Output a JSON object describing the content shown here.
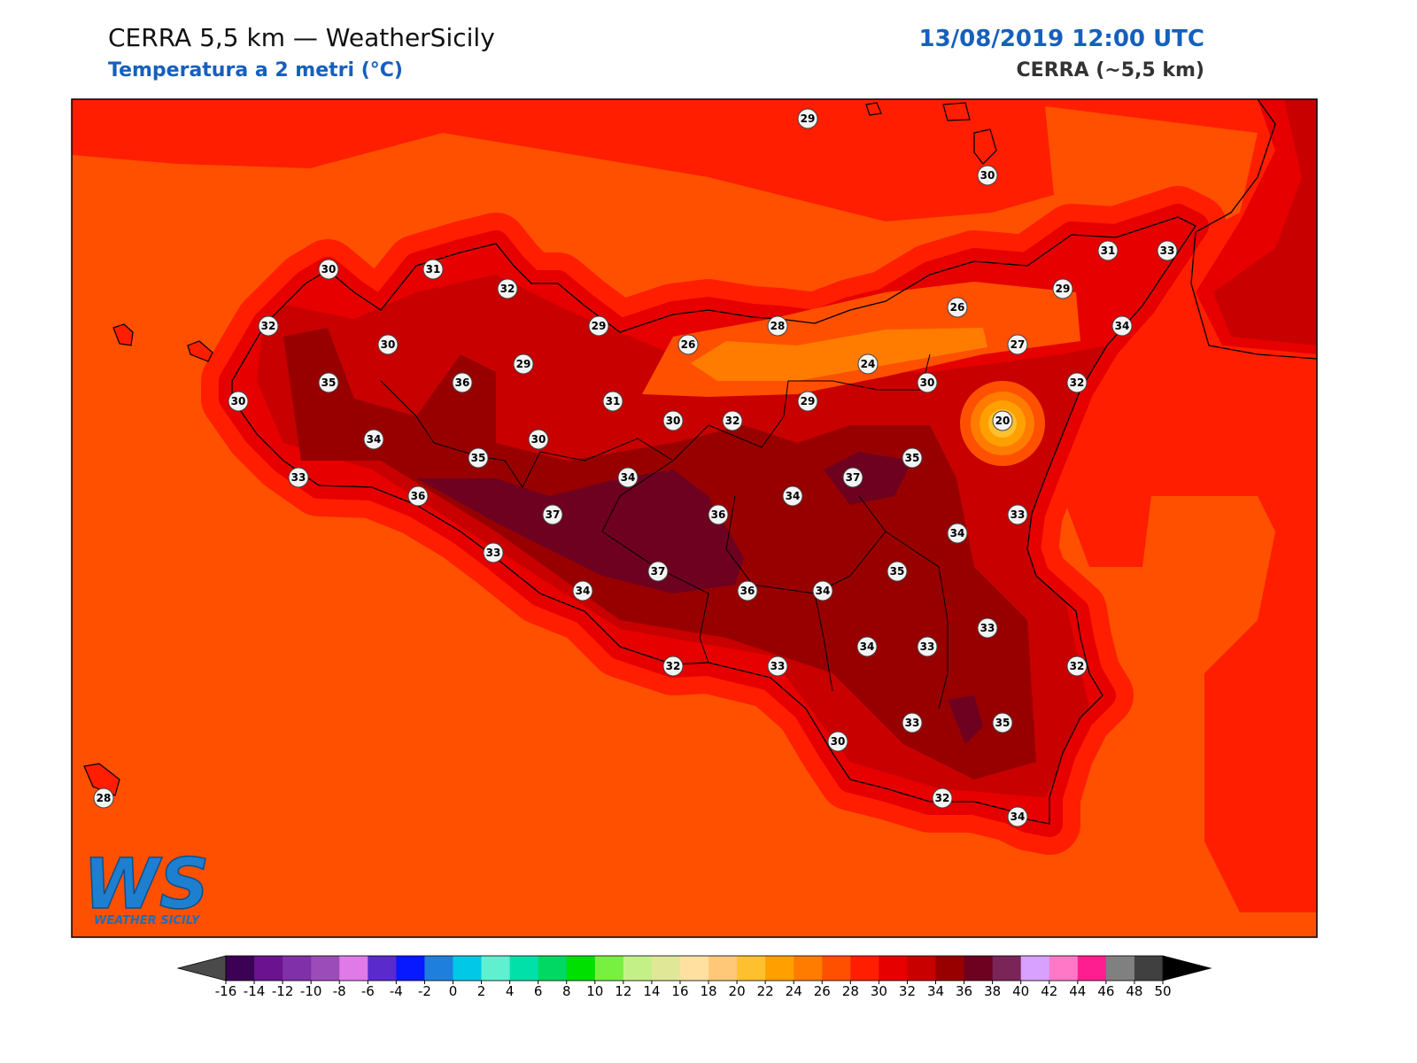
{
  "header": {
    "title": "CERRA 5,5 km — WeatherSicily",
    "subtitle": "Temperatura a 2 metri (°C)",
    "datetime": "13/08/2019 12:00 UTC",
    "source": "CERRA (~5,5 km)"
  },
  "logo": {
    "mark": "WS",
    "text": "Weather Sicily"
  },
  "stations": [
    29,
    30,
    30,
    31,
    32,
    32,
    30,
    29,
    26,
    28,
    26,
    29,
    31,
    33,
    34,
    27,
    24,
    30,
    32,
    35,
    36,
    29,
    30,
    31,
    30,
    32,
    29,
    20,
    34,
    30,
    35,
    35,
    33,
    34,
    37,
    36,
    34,
    37,
    36,
    33,
    34,
    33,
    37,
    35,
    34,
    36,
    34,
    33,
    34,
    33,
    32,
    33,
    32,
    33,
    35,
    30,
    32,
    28,
    34
  ],
  "colorbar": {
    "ticks": [
      -16,
      -14,
      -12,
      -10,
      -8,
      -6,
      -4,
      -2,
      0,
      2,
      4,
      6,
      8,
      10,
      12,
      14,
      16,
      18,
      20,
      22,
      24,
      26,
      28,
      30,
      32,
      34,
      36,
      38,
      40,
      42,
      44,
      46,
      48,
      50
    ],
    "colors": [
      "#3c0055",
      "#6a128f",
      "#8030a8",
      "#9c4cb8",
      "#e07ae8",
      "#5a2acc",
      "#0818ff",
      "#1e80dc",
      "#00c8e6",
      "#60f0d0",
      "#00e0a8",
      "#00d864",
      "#00e000",
      "#78f040",
      "#c4f088",
      "#e0e898",
      "#ffe0a0",
      "#ffc878",
      "#ffc030",
      "#ffa000",
      "#ff7c00",
      "#ff5000",
      "#ff1e00",
      "#e60000",
      "#c80000",
      "#980000",
      "#6e0020",
      "#7a2458",
      "#d8a0ff",
      "#ff78c8",
      "#ff1e90",
      "#808080",
      "#404040"
    ],
    "under_color": "#4a4a4a",
    "over_color": "#000000"
  }
}
